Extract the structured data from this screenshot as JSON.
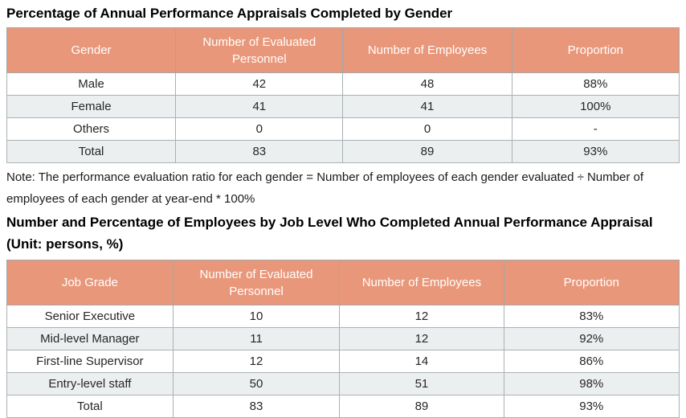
{
  "colors": {
    "header_bg": "#E9977A",
    "header_text": "#FFFFFF",
    "alt_row_bg": "#ECEFF0",
    "border": "#A9B1B2",
    "title_text": "#000000"
  },
  "gender_table": {
    "title": "Percentage of Annual Performance Appraisals Completed by Gender",
    "columns": [
      "Gender",
      "Number of Evaluated Personnel",
      "Number of Employees",
      "Proportion"
    ],
    "rows": [
      [
        "Male",
        "42",
        "48",
        "88%"
      ],
      [
        "Female",
        "41",
        "41",
        "100%"
      ],
      [
        "Others",
        "0",
        "0",
        "-"
      ],
      [
        "Total",
        "83",
        "89",
        "93%"
      ]
    ]
  },
  "note": "Note: The performance evaluation ratio for each gender = Number of employees of each gender evaluated ÷ Number of employees of each gender at year-end * 100%",
  "job_level_table": {
    "title": "Number and Percentage of Employees by Job Level Who Completed Annual Performance Appraisal (Unit: persons, %)",
    "columns": [
      "Job Grade",
      "Number of Evaluated Personnel",
      "Number of Employees",
      "Proportion"
    ],
    "rows": [
      [
        "Senior Executive",
        "10",
        "12",
        "83%"
      ],
      [
        "Mid-level Manager",
        "11",
        "12",
        "92%"
      ],
      [
        "First-line Supervisor",
        "12",
        "14",
        "86%"
      ],
      [
        "Entry-level staff",
        "50",
        "51",
        "98%"
      ],
      [
        "Total",
        "83",
        "89",
        "93%"
      ]
    ]
  }
}
